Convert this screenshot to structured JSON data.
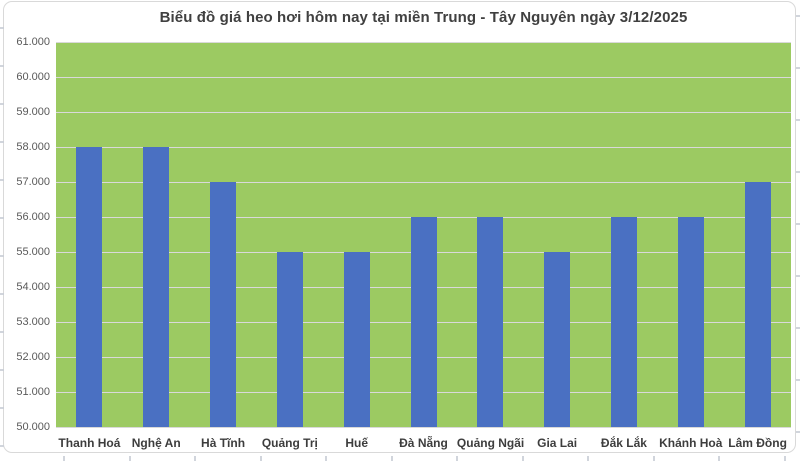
{
  "chart_data": {
    "type": "bar",
    "title": "Biểu đồ giá heo hơi hôm nay tại miền Trung - Tây Nguyên ngày 3/12/2025",
    "categories": [
      "Thanh Hoá",
      "Nghệ An",
      "Hà Tĩnh",
      "Quảng Trị",
      "Huế",
      "Đà Nẵng",
      "Quảng Ngãi",
      "Gia Lai",
      "Đắk Lắk",
      "Khánh Hoà",
      "Lâm Đồng"
    ],
    "values": [
      58000,
      58000,
      57000,
      55000,
      55000,
      56000,
      56000,
      55000,
      56000,
      56000,
      57000
    ],
    "xlabel": "",
    "ylabel": "",
    "ylim": [
      50000,
      61000
    ],
    "ytick_step": 1000,
    "ytick_labels": [
      "61.000",
      "60.000",
      "59.000",
      "58.000",
      "57.000",
      "56.000",
      "55.000",
      "54.000",
      "53.000",
      "52.000",
      "51.000",
      "50.000"
    ],
    "grid": "horizontal-only",
    "legend_position": "none",
    "colors": {
      "bar": "#4A70C2",
      "plot_background": "#9CCA62",
      "gridline": "#D9D9D9",
      "chart_border": "#D9D9D9",
      "title_text": "#404040",
      "axis_text": "#595959"
    }
  }
}
